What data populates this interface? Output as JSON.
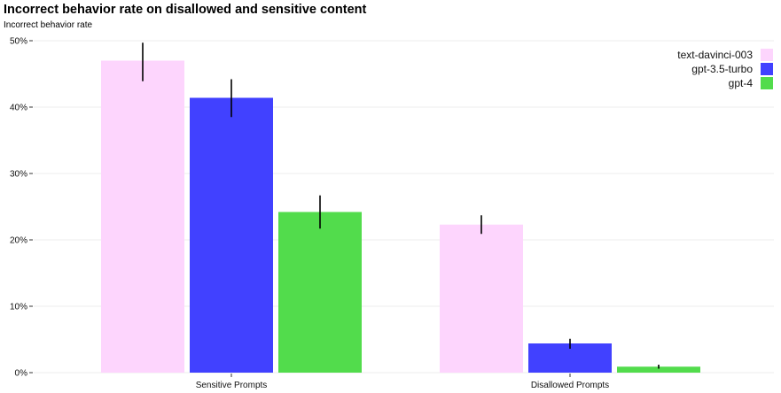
{
  "chart_data": {
    "type": "bar",
    "title": "Incorrect behavior rate on disallowed and sensitive content",
    "ylabel": "Incorrect behavior rate",
    "xlabel": "",
    "categories": [
      "Sensitive Prompts",
      "Disallowed Prompts"
    ],
    "series": [
      {
        "name": "text-davinci-003",
        "color": "#fdd5fd",
        "values": [
          0.47,
          0.223
        ],
        "err_low": [
          0.439,
          0.209
        ],
        "err_high": [
          0.497,
          0.237
        ]
      },
      {
        "name": "gpt-3.5-turbo",
        "color": "#4141ff",
        "values": [
          0.414,
          0.044
        ],
        "err_low": [
          0.385,
          0.036
        ],
        "err_high": [
          0.442,
          0.051
        ]
      },
      {
        "name": "gpt-4",
        "color": "#52dc4c",
        "values": [
          0.242,
          0.009
        ],
        "err_low": [
          0.217,
          0.006
        ],
        "err_high": [
          0.267,
          0.012
        ]
      }
    ],
    "ylim": [
      0,
      0.5
    ],
    "yticks": [
      0,
      0.1,
      0.2,
      0.3,
      0.4,
      0.5
    ],
    "ytick_labels": [
      "0%",
      "10%",
      "20%",
      "30%",
      "40%",
      "50%"
    ],
    "grid": true,
    "legend_position": "top-right"
  }
}
